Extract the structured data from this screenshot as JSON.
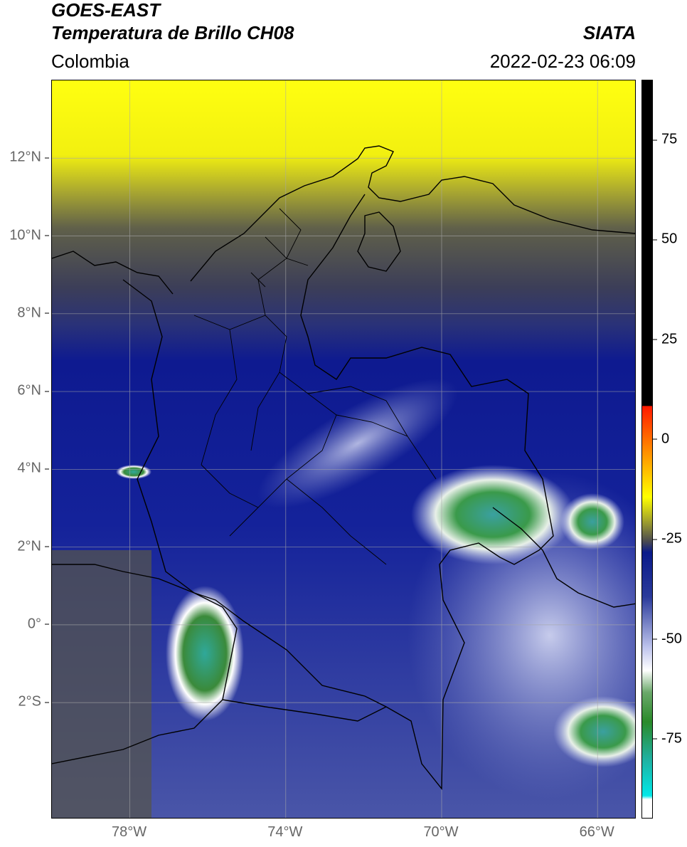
{
  "header": {
    "satellite": "GOES-EAST",
    "product": "Temperatura de Brillo CH08",
    "organization": "SIATA",
    "region": "Colombia",
    "timestamp": "2022-02-23 06:09"
  },
  "map": {
    "lat_range": [
      -5,
      14
    ],
    "lon_range": [
      -80,
      -65
    ],
    "lat_labels": [
      "12°N",
      "10°N",
      "8°N",
      "6°N",
      "4°N",
      "2°N",
      "0°",
      "2°S"
    ],
    "lon_labels": [
      "78°W",
      "74°W",
      "70°W",
      "66°W"
    ],
    "gridlines": true
  },
  "colorbar": {
    "labels": [
      "75",
      "50",
      "25",
      "0",
      "-25",
      "-50",
      "-75"
    ],
    "range": [
      -95,
      90
    ],
    "colors": {
      "top_black": "#000000",
      "red": "#ff2a00",
      "orange": "#ff9a00",
      "yellow": "#ffff00",
      "olive": "#8a8a2a",
      "dark_gray": "#3a3a45",
      "navy": "#0a1a8a",
      "blue": "#2a3a9a",
      "light_blue": "#b0b8e6",
      "white": "#ffffff",
      "green": "#2a8a2a",
      "teal": "#20c2a0",
      "cyan": "#00e8e8"
    }
  }
}
